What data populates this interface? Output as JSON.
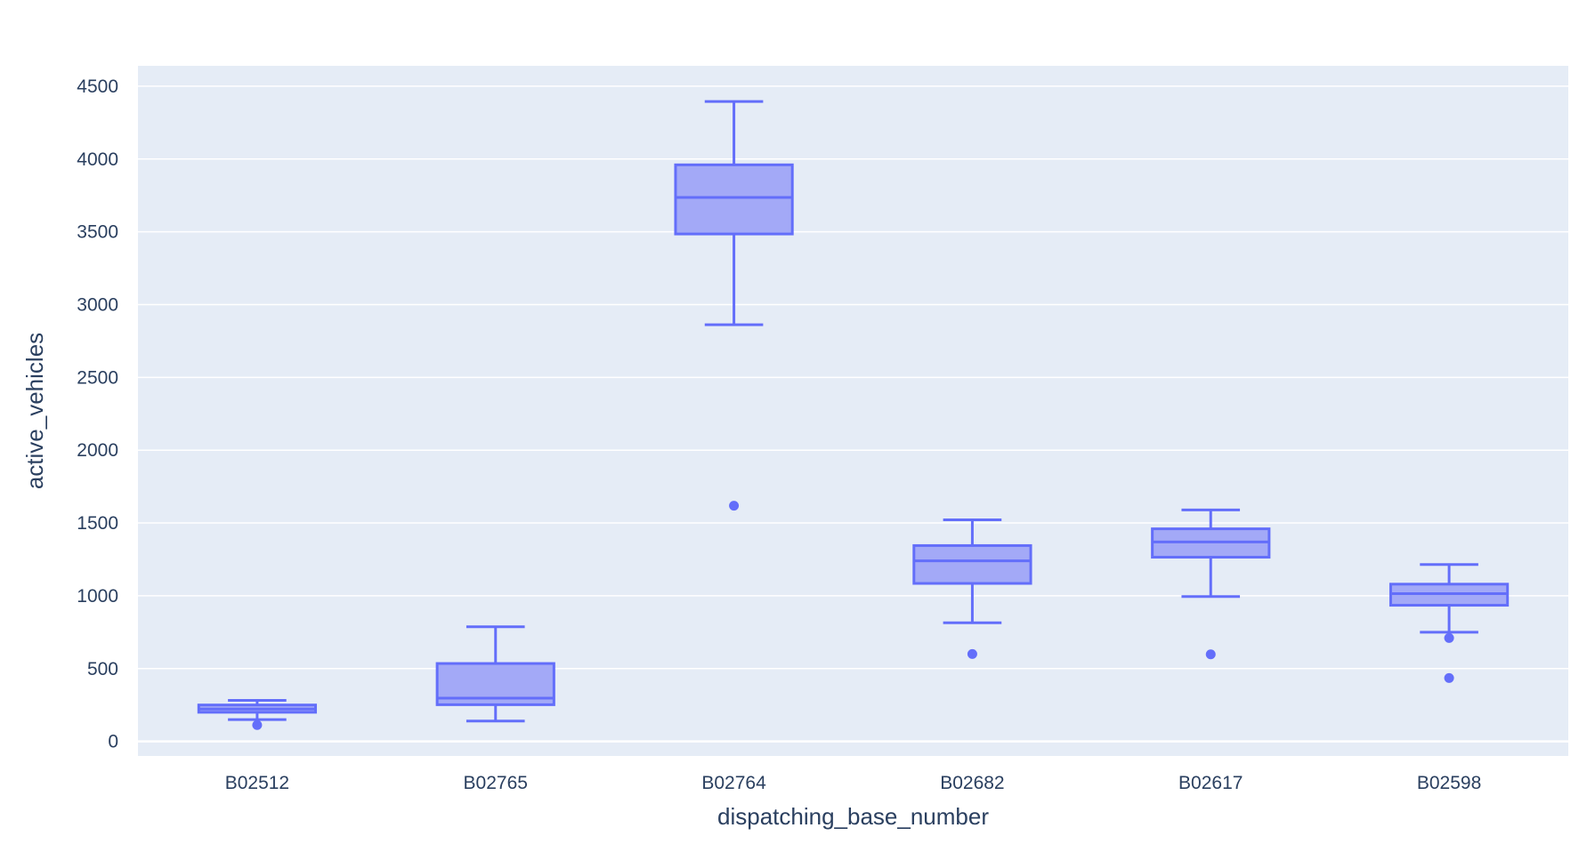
{
  "chart_data": {
    "type": "box",
    "title": "",
    "xlabel": "dispatching_base_number",
    "ylabel": "active_vehicles",
    "ylim": [
      -100,
      4640
    ],
    "yticks": [
      0,
      500,
      1000,
      1500,
      2000,
      2500,
      3000,
      3500,
      4000,
      4500
    ],
    "grid": true,
    "legend": "none",
    "colors": {
      "plot_bg": "#e5ecf6",
      "grid": "#ffffff",
      "box_line": "#636efa",
      "box_fill": "#a3a9f7",
      "text": "#2a3f5f"
    },
    "categories": [
      "B02512",
      "B02765",
      "B02764",
      "B02682",
      "B02617",
      "B02598"
    ],
    "boxes": [
      {
        "category": "B02512",
        "lower_fence": 150,
        "q1": 200,
        "median": 222,
        "q3": 250,
        "upper_fence": 282,
        "outliers": [
          112
        ]
      },
      {
        "category": "B02765",
        "lower_fence": 140,
        "q1": 252,
        "median": 297,
        "q3": 535,
        "upper_fence": 787,
        "outliers": []
      },
      {
        "category": "B02764",
        "lower_fence": 2862,
        "q1": 3485,
        "median": 3736,
        "q3": 3960,
        "upper_fence": 4395,
        "outliers": [
          1619
        ]
      },
      {
        "category": "B02682",
        "lower_fence": 815,
        "q1": 1085,
        "median": 1240,
        "q3": 1345,
        "upper_fence": 1522,
        "outliers": [
          600
        ]
      },
      {
        "category": "B02617",
        "lower_fence": 995,
        "q1": 1265,
        "median": 1370,
        "q3": 1460,
        "upper_fence": 1590,
        "outliers": [
          598
        ]
      },
      {
        "category": "B02598",
        "lower_fence": 750,
        "q1": 935,
        "median": 1015,
        "q3": 1080,
        "upper_fence": 1215,
        "outliers": [
          710,
          435
        ]
      }
    ]
  }
}
